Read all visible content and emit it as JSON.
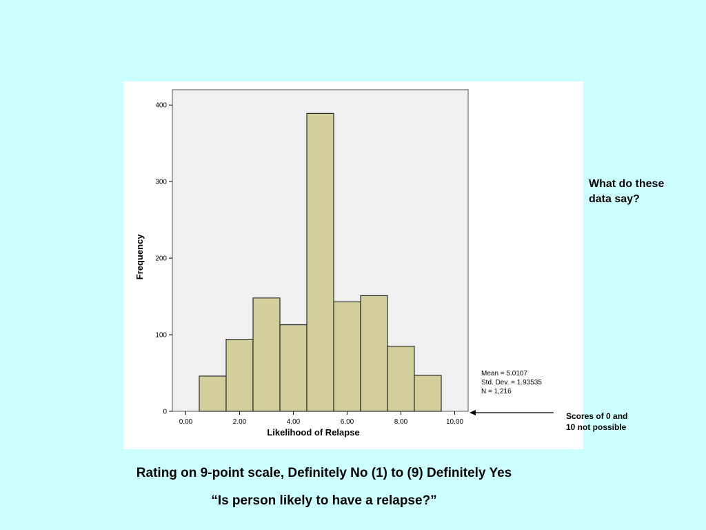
{
  "chart_data": {
    "type": "bar",
    "xlabel": "Likelihood of Relapse",
    "ylabel": "Frequency",
    "x_ticks": [
      "0.00",
      "2.00",
      "4.00",
      "6.00",
      "8.00",
      "10.00"
    ],
    "x_tick_values": [
      0,
      2,
      4,
      6,
      8,
      10
    ],
    "xlim": [
      -0.5,
      10.5
    ],
    "y_ticks": [
      "0",
      "100",
      "200",
      "300",
      "400"
    ],
    "y_tick_values": [
      0,
      100,
      200,
      300,
      400
    ],
    "ylim": [
      0,
      420
    ],
    "bin_width": 1,
    "categories": [
      1,
      2,
      3,
      4,
      5,
      6,
      7,
      8,
      9
    ],
    "values": [
      46,
      94,
      148,
      113,
      389,
      143,
      151,
      85,
      47
    ],
    "colors": {
      "bar_fill": "#d3cf9b",
      "bar_stroke": "#2a2a2a",
      "plot_bg": "#f0f0f0"
    },
    "stats": [
      "Mean = 5.0107",
      "Std. Dev. = 1.93535",
      "N = 1,216"
    ]
  },
  "annotations": {
    "question_line1": "What do these",
    "question_line2": "data say?",
    "note_line1": "Scores of 0 and",
    "note_line2": "10 not possible"
  },
  "captions": {
    "scale": "Rating on 9-point scale, Definitely No (1) to (9) Definitely Yes",
    "question": "“Is person likely to have a relapse?”"
  }
}
